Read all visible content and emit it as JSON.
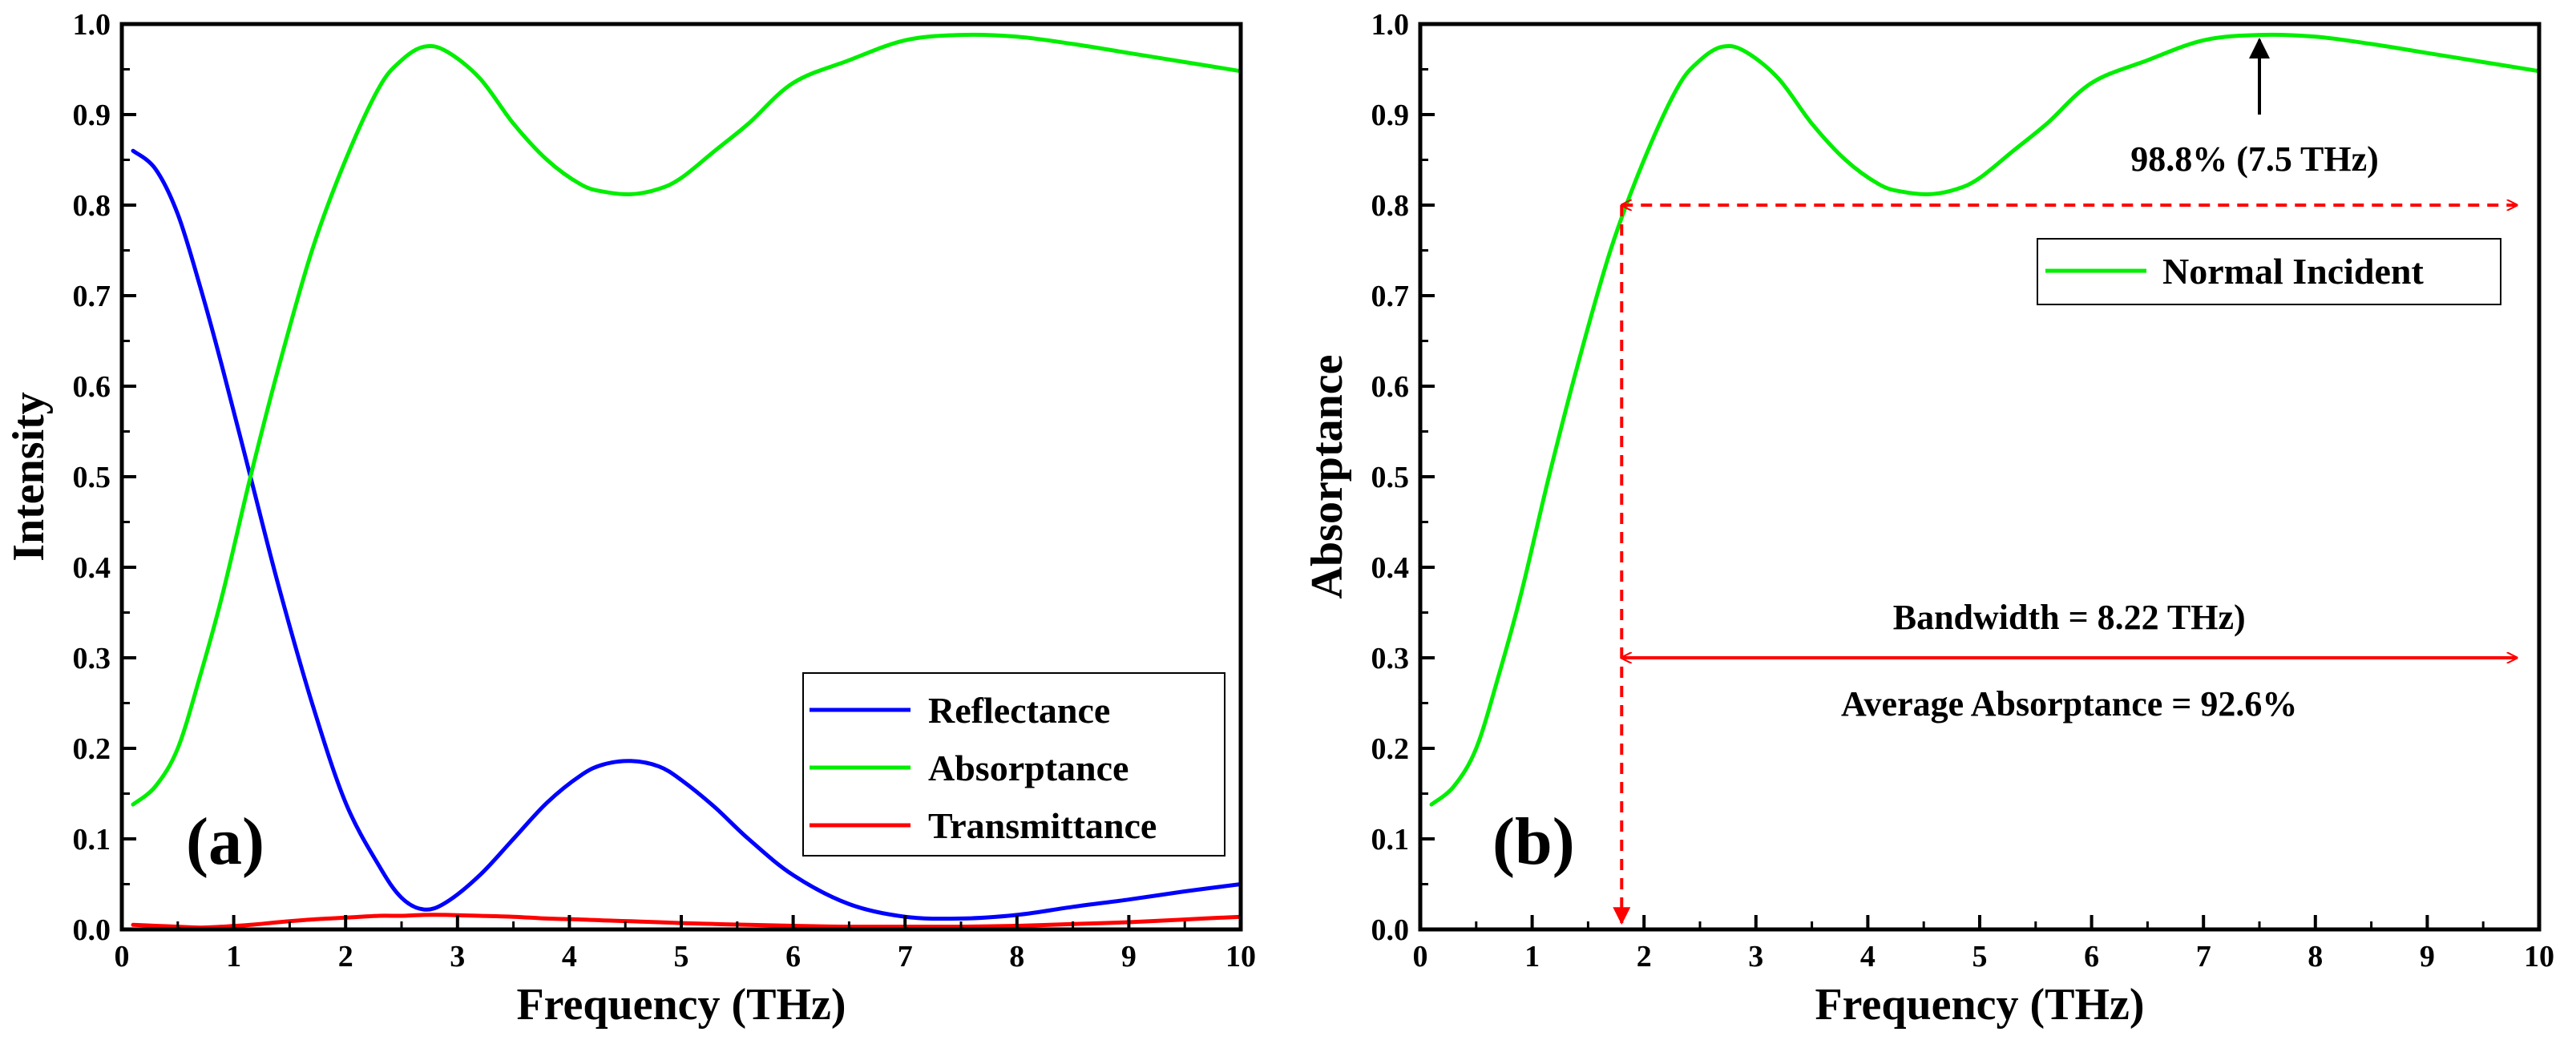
{
  "chart_data": [
    {
      "type": "line",
      "panel_label": "(a)",
      "xlabel": "Frequency (THz)",
      "ylabel": "Intensity",
      "xlim": [
        0,
        10
      ],
      "ylim": [
        0,
        1.0
      ],
      "xticks": [
        "0",
        "1",
        "2",
        "3",
        "4",
        "5",
        "6",
        "7",
        "8",
        "9",
        "10"
      ],
      "yticks": [
        "0.0",
        "0.1",
        "0.2",
        "0.3",
        "0.4",
        "0.5",
        "0.6",
        "0.7",
        "0.8",
        "0.9",
        "1.0"
      ],
      "legend_position": "bottom-right",
      "x": [
        0.1,
        0.3,
        0.5,
        0.7,
        0.9,
        1.15,
        1.4,
        1.7,
        2.0,
        2.3,
        2.5,
        2.7,
        2.9,
        3.2,
        3.5,
        3.8,
        4.1,
        4.3,
        4.55,
        4.8,
        5.0,
        5.3,
        5.6,
        6.0,
        6.5,
        7.0,
        7.5,
        8.0,
        8.5,
        9.0,
        9.5,
        10.0
      ],
      "series": [
        {
          "name": "Reflectance",
          "color": "#0000ff",
          "values": [
            0.86,
            0.84,
            0.79,
            0.71,
            0.62,
            0.5,
            0.38,
            0.25,
            0.14,
            0.07,
            0.035,
            0.022,
            0.03,
            0.06,
            0.1,
            0.14,
            0.17,
            0.182,
            0.186,
            0.18,
            0.165,
            0.135,
            0.1,
            0.06,
            0.028,
            0.014,
            0.012,
            0.016,
            0.025,
            0.033,
            0.042,
            0.05
          ]
        },
        {
          "name": "Absorptance",
          "color": "#00ee00",
          "values": [
            0.138,
            0.158,
            0.2,
            0.28,
            0.37,
            0.5,
            0.62,
            0.75,
            0.85,
            0.93,
            0.96,
            0.975,
            0.97,
            0.94,
            0.89,
            0.85,
            0.823,
            0.815,
            0.812,
            0.818,
            0.83,
            0.86,
            0.89,
            0.935,
            0.96,
            0.982,
            0.988,
            0.986,
            0.978,
            0.968,
            0.958,
            0.948
          ]
        },
        {
          "name": "Transmittance",
          "color": "#ff0000",
          "values": [
            0.005,
            0.004,
            0.003,
            0.002,
            0.003,
            0.005,
            0.008,
            0.011,
            0.013,
            0.015,
            0.015,
            0.016,
            0.016,
            0.015,
            0.014,
            0.012,
            0.011,
            0.01,
            0.009,
            0.008,
            0.007,
            0.006,
            0.005,
            0.004,
            0.003,
            0.003,
            0.003,
            0.004,
            0.006,
            0.008,
            0.011,
            0.014
          ]
        }
      ]
    },
    {
      "type": "line",
      "panel_label": "(b)",
      "xlabel": "Frequency (THz)",
      "ylabel": "Absorptance",
      "xlim": [
        0,
        10
      ],
      "ylim": [
        0,
        1.0
      ],
      "xticks": [
        "0",
        "1",
        "2",
        "3",
        "4",
        "5",
        "6",
        "7",
        "8",
        "9",
        "10"
      ],
      "yticks": [
        "0.0",
        "0.1",
        "0.2",
        "0.3",
        "0.4",
        "0.5",
        "0.6",
        "0.7",
        "0.8",
        "0.9",
        "1.0"
      ],
      "legend_position": "top-right",
      "x": [
        0.1,
        0.3,
        0.5,
        0.7,
        0.9,
        1.15,
        1.4,
        1.7,
        2.0,
        2.3,
        2.5,
        2.7,
        2.9,
        3.2,
        3.5,
        3.8,
        4.1,
        4.3,
        4.55,
        4.8,
        5.0,
        5.3,
        5.6,
        6.0,
        6.5,
        7.0,
        7.5,
        8.0,
        8.5,
        9.0,
        9.5,
        10.0
      ],
      "series": [
        {
          "name": "Normal Incident",
          "color": "#00ee00",
          "values": [
            0.138,
            0.158,
            0.2,
            0.28,
            0.37,
            0.5,
            0.62,
            0.75,
            0.85,
            0.93,
            0.96,
            0.975,
            0.97,
            0.94,
            0.89,
            0.85,
            0.823,
            0.815,
            0.812,
            0.818,
            0.83,
            0.86,
            0.89,
            0.935,
            0.96,
            0.982,
            0.988,
            0.986,
            0.978,
            0.968,
            0.958,
            0.948
          ]
        }
      ],
      "annotations": {
        "peak_label": "98.8% (7.5 THz)",
        "peak_x": 7.5,
        "peak_y": 0.988,
        "band_start_x": 1.8,
        "band_end_x": 9.8,
        "threshold_y": 0.8,
        "bandwidth_arrow_y": 0.3,
        "bandwidth_text": "Bandwidth = 8.22 THz)",
        "average_text": "Average Absorptance = 92.6%",
        "arrow_color": "#ff0000"
      }
    }
  ]
}
